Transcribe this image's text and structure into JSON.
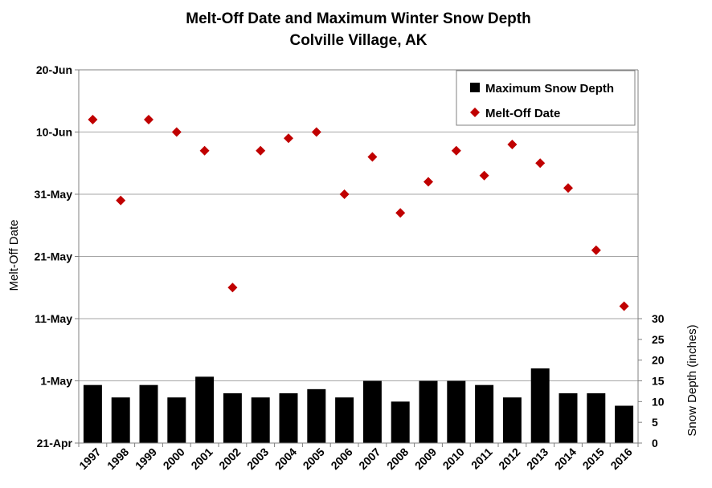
{
  "chart_data": {
    "type": "bar+scatter",
    "title": "Melt-Off Date and Maximum Winter Snow Depth",
    "subtitle": "Colville Village, AK",
    "categories": [
      "1997",
      "1998",
      "1999",
      "2000",
      "2001",
      "2002",
      "2003",
      "2004",
      "2005",
      "2006",
      "2007",
      "2008",
      "2009",
      "2010",
      "2011",
      "2012",
      "2013",
      "2014",
      "2015",
      "2016"
    ],
    "y_left": {
      "label": "Melt-Off Date",
      "ticks": [
        "20-Jun",
        "10-Jun",
        "31-May",
        "21-May",
        "11-May",
        "1-May",
        "21-Apr"
      ],
      "range": [
        "21-Apr",
        "20-Jun"
      ],
      "grid": true
    },
    "y_right": {
      "label": "Snow Depth (inches)",
      "ticks": [
        0,
        5,
        10,
        15,
        20,
        25,
        30
      ],
      "range": [
        0,
        30
      ]
    },
    "legend": {
      "placement": "top-right",
      "entries": [
        "Maximum Snow Depth",
        "Melt-Off Date"
      ]
    },
    "series": [
      {
        "name": "Maximum Snow Depth",
        "kind": "bar",
        "axis": "right",
        "color": "#000000",
        "values": [
          14,
          11,
          14,
          11,
          16,
          12,
          11,
          12,
          13,
          11,
          15,
          10,
          15,
          15,
          14,
          11,
          18,
          12,
          12,
          9
        ]
      },
      {
        "name": "Melt-Off Date",
        "kind": "scatter",
        "axis": "left",
        "color": "#c00000",
        "values": [
          "12-Jun",
          "30-May",
          "12-Jun",
          "10-Jun",
          "7-Jun",
          "16-May",
          "7-Jun",
          "9-Jun",
          "10-Jun",
          "31-May",
          "6-Jun",
          "28-May",
          "2-Jun",
          "7-Jun",
          "3-Jun",
          "8-Jun",
          "5-Jun",
          "1-Jun",
          "22-May",
          "13-May"
        ]
      }
    ]
  }
}
